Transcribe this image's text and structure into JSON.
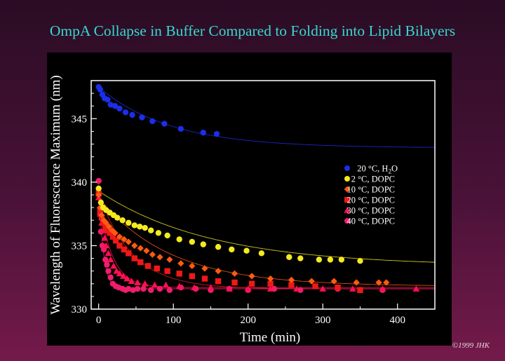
{
  "title": "OmpA Collapse in Buffer Compared to Folding into Lipid Bilayers",
  "credit": "©1999 JHK",
  "chart_data": {
    "type": "scatter",
    "xlabel": "Time (min)",
    "ylabel": "Wavelength of Fluorescence Maximum (nm)",
    "xlim": [
      -10,
      450
    ],
    "ylim": [
      330,
      348
    ],
    "xticks": [
      0,
      100,
      200,
      300,
      400
    ],
    "yticks": [
      330,
      335,
      340,
      345
    ],
    "grid": false,
    "legend_position": "right",
    "series": [
      {
        "name": "20 °C, H",
        "sub": "2",
        "name_tail": "O",
        "color": "#1c2ee8",
        "marker": "circle",
        "x": [
          0,
          2,
          5,
          8,
          12,
          16,
          22,
          28,
          36,
          45,
          58,
          72,
          88,
          110,
          140,
          158
        ],
        "y": [
          347.5,
          347.3,
          346.9,
          346.6,
          346.5,
          346.1,
          346.0,
          345.8,
          345.5,
          345.3,
          345.1,
          344.8,
          344.6,
          344.2,
          343.9,
          343.8
        ],
        "fit": {
          "a": 342.7,
          "b": 4.8,
          "tau": 95
        }
      },
      {
        "name": "2 °C, DOPC",
        "color": "#f4ea20",
        "marker": "circle",
        "x": [
          0,
          3,
          6,
          10,
          15,
          20,
          25,
          32,
          40,
          48,
          55,
          62,
          70,
          80,
          92,
          108,
          125,
          140,
          160,
          178,
          198,
          218,
          255,
          270,
          295,
          310,
          325,
          350
        ],
        "y": [
          339.5,
          338.4,
          338.0,
          337.8,
          337.6,
          337.4,
          337.2,
          337.0,
          336.8,
          336.6,
          336.5,
          336.4,
          336.2,
          336.0,
          335.8,
          335.5,
          335.3,
          335.1,
          334.9,
          334.7,
          334.6,
          334.4,
          334.1,
          334.0,
          333.9,
          333.9,
          333.9,
          333.8
        ],
        "fit": {
          "a": 333.4,
          "b": 5.9,
          "tau": 150
        }
      },
      {
        "name": "10 °C, DOPC",
        "color": "#ff5a10",
        "marker": "diamond",
        "x": [
          0,
          2,
          4,
          7,
          10,
          14,
          18,
          22,
          28,
          34,
          40,
          48,
          56,
          64,
          72,
          82,
          95,
          110,
          125,
          142,
          160,
          182,
          205,
          230,
          258,
          285,
          315,
          345,
          375,
          385
        ],
        "y": [
          339.0,
          338.0,
          337.4,
          337.0,
          336.8,
          336.5,
          336.2,
          336.0,
          335.7,
          335.5,
          335.3,
          335.0,
          334.8,
          334.6,
          334.3,
          334.1,
          333.9,
          333.6,
          333.4,
          333.2,
          333.0,
          332.8,
          332.6,
          332.4,
          332.3,
          332.2,
          332.2,
          332.1,
          332.1,
          332.1
        ],
        "fit": {
          "a": 331.8,
          "b": 7.0,
          "tau": 95
        }
      },
      {
        "name": "20 °C, DOPC",
        "color": "#ee1818",
        "marker": "square",
        "x": [
          0,
          2,
          4,
          6,
          9,
          12,
          15,
          19,
          23,
          28,
          34,
          40,
          48,
          56,
          66,
          78,
          92,
          108,
          125,
          142,
          160,
          182,
          205,
          230,
          258,
          290,
          320,
          350
        ],
        "y": [
          339.1,
          337.8,
          337.2,
          336.8,
          336.5,
          336.2,
          336.0,
          335.7,
          335.4,
          335.0,
          334.7,
          334.4,
          334.0,
          333.7,
          333.4,
          333.2,
          333.0,
          332.8,
          332.6,
          332.4,
          332.2,
          332.1,
          332.0,
          332.0,
          331.9,
          331.8,
          331.7,
          331.5
        ],
        "fit": {
          "a": 331.6,
          "b": 7.5,
          "tau": 45
        }
      },
      {
        "name": "30 °C, DOPC",
        "color": "#ff1050",
        "marker": "triangle",
        "x": [
          0,
          2,
          4,
          6,
          8,
          10,
          13,
          16,
          20,
          24,
          28,
          33,
          38,
          44,
          52,
          62,
          75,
          90,
          108,
          128,
          150,
          175,
          200,
          230,
          265,
          300,
          340,
          380,
          425
        ],
        "y": [
          338.8,
          337.5,
          336.8,
          336.2,
          335.6,
          335.0,
          334.4,
          333.9,
          333.4,
          333.0,
          332.8,
          332.6,
          332.4,
          332.2,
          332.1,
          332.0,
          331.9,
          331.9,
          331.8,
          331.7,
          331.7,
          331.6,
          331.6,
          331.6,
          331.6,
          331.6,
          331.6,
          331.6,
          331.6
        ],
        "fit": {
          "a": 331.7,
          "b": 7.0,
          "tau": 18
        }
      },
      {
        "name": "40 °C, DOPC",
        "color": "#f01c6c",
        "marker": "circle",
        "x": [
          0,
          2,
          3,
          5,
          7,
          9,
          11,
          13,
          16,
          19,
          23,
          27,
          32,
          36,
          40,
          46,
          52,
          60,
          70,
          82,
          95,
          110,
          130,
          150,
          175,
          200,
          235,
          270,
          320,
          380
        ],
        "y": [
          340.1,
          337.5,
          336.1,
          335.0,
          334.7,
          333.9,
          333.5,
          333.0,
          332.5,
          332.0,
          331.8,
          331.7,
          331.6,
          331.5,
          331.6,
          331.5,
          331.6,
          331.6,
          331.5,
          331.6,
          331.5,
          331.7,
          331.6,
          331.5,
          331.6,
          331.5,
          331.6,
          331.5,
          331.6,
          331.5
        ],
        "fit": {
          "a": 331.6,
          "b": 8.4,
          "tau": 6
        }
      }
    ]
  }
}
